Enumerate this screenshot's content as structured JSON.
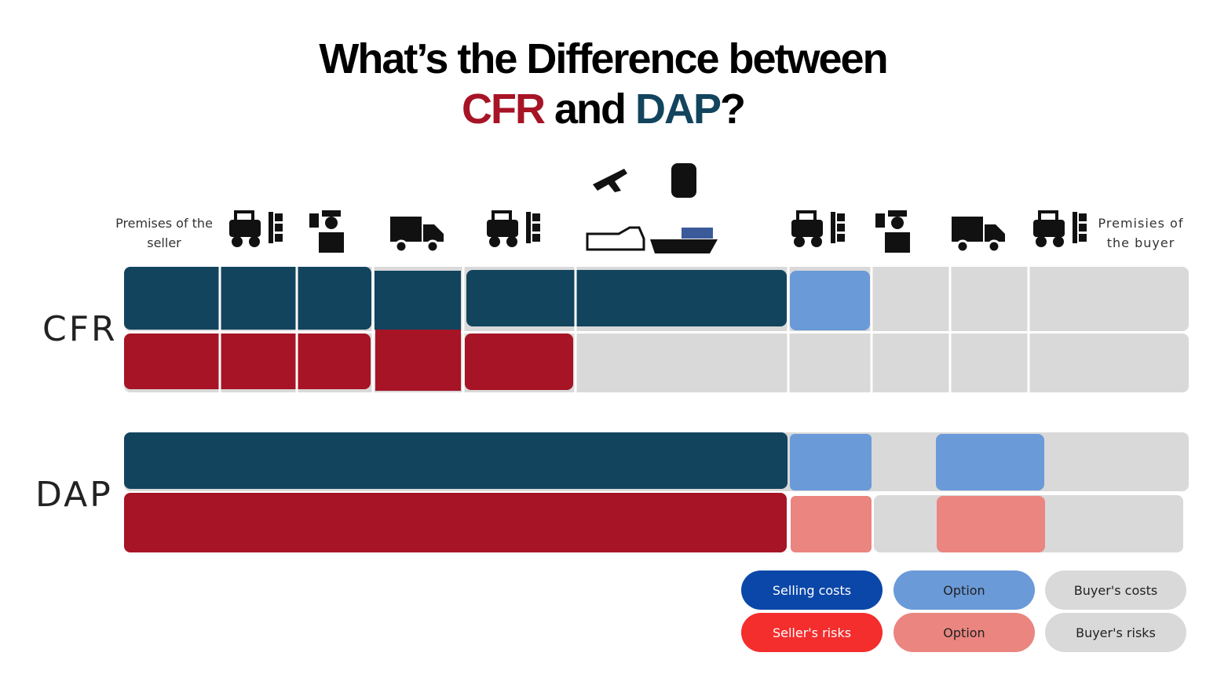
{
  "title": {
    "line1": "What’s the Difference between",
    "cfr": "CFR",
    "and": "and",
    "dap": "DAP",
    "mark": "?"
  },
  "start_label": "Premises of the seller",
  "end_label": "Premisies of the buyer",
  "rows": [
    {
      "label": "CFR"
    },
    {
      "label": "DAP"
    }
  ],
  "legend": [
    [
      "Selling costs",
      "Option",
      "Buyer's costs"
    ],
    [
      "Seller's risks",
      "Option",
      "Buyer's risks"
    ]
  ]
}
